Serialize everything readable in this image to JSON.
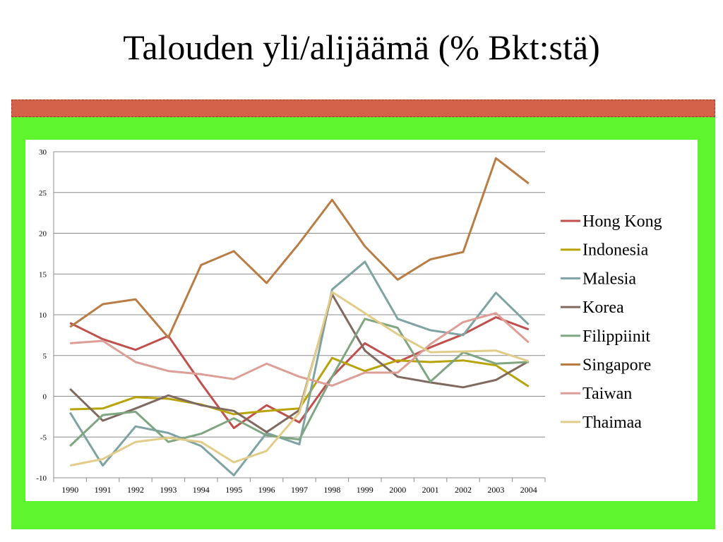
{
  "slide": {
    "title": "Talouden yli/alijäämä (% Bkt:stä)"
  },
  "chart_data": {
    "type": "line",
    "x": [
      "1990",
      "1991",
      "1992",
      "1993",
      "1994",
      "1995",
      "1996",
      "1997",
      "1998",
      "1999",
      "2000",
      "2001",
      "2002",
      "2003",
      "2004"
    ],
    "ylim": [
      -10,
      30
    ],
    "yticks": [
      -10,
      -5,
      0,
      5,
      10,
      15,
      20,
      25,
      30
    ],
    "grid": true,
    "legend_position": "right",
    "series": [
      {
        "name": "Hong Kong",
        "color": "#c0504d",
        "values": [
          9.0,
          7.0,
          5.7,
          7.4,
          1.6,
          -3.9,
          -1.1,
          -3.2,
          2.4,
          6.5,
          4.2,
          6.0,
          7.6,
          9.7,
          8.2
        ]
      },
      {
        "name": "Indonesia",
        "color": "#b8a40a",
        "values": [
          -1.6,
          -1.5,
          -0.1,
          -0.3,
          -1.0,
          -2.2,
          -1.8,
          -1.5,
          4.7,
          3.1,
          4.4,
          4.2,
          4.4,
          3.8,
          1.2
        ]
      },
      {
        "name": "Malesia",
        "color": "#7fa3a3",
        "values": [
          -2.0,
          -8.5,
          -3.7,
          -4.5,
          -6.1,
          -9.7,
          -4.5,
          -5.9,
          13.1,
          16.5,
          9.5,
          8.1,
          7.5,
          12.7,
          8.8
        ]
      },
      {
        "name": "Korea",
        "color": "#7f6a60",
        "values": [
          0.9,
          -3.0,
          -1.5,
          0.1,
          -1.1,
          -1.8,
          -4.4,
          -1.7,
          12.5,
          5.6,
          2.4,
          1.7,
          1.1,
          2.0,
          4.3
        ]
      },
      {
        "name": "Filippiinit",
        "color": "#7fa681",
        "values": [
          -6.1,
          -2.3,
          -1.9,
          -5.6,
          -4.6,
          -2.7,
          -4.8,
          -5.3,
          2.4,
          9.5,
          8.4,
          1.8,
          5.4,
          4.0,
          4.2
        ]
      },
      {
        "name": "Singapore",
        "color": "#b87d45",
        "values": [
          8.5,
          11.3,
          11.9,
          7.2,
          16.1,
          17.8,
          13.9,
          18.8,
          24.1,
          18.4,
          14.3,
          16.8,
          17.7,
          29.2,
          26.1
        ]
      },
      {
        "name": "Taiwan",
        "color": "#dc9e96",
        "values": [
          6.5,
          6.8,
          4.2,
          3.1,
          2.7,
          2.1,
          4.0,
          2.4,
          1.3,
          2.9,
          2.9,
          6.4,
          9.1,
          10.2,
          6.6
        ]
      },
      {
        "name": "Thaimaa",
        "color": "#e1cc8a",
        "values": [
          -8.5,
          -7.7,
          -5.6,
          -5.1,
          -5.6,
          -8.1,
          -6.7,
          -2.0,
          12.8,
          10.2,
          7.6,
          5.4,
          5.5,
          5.6,
          4.3
        ]
      }
    ]
  }
}
